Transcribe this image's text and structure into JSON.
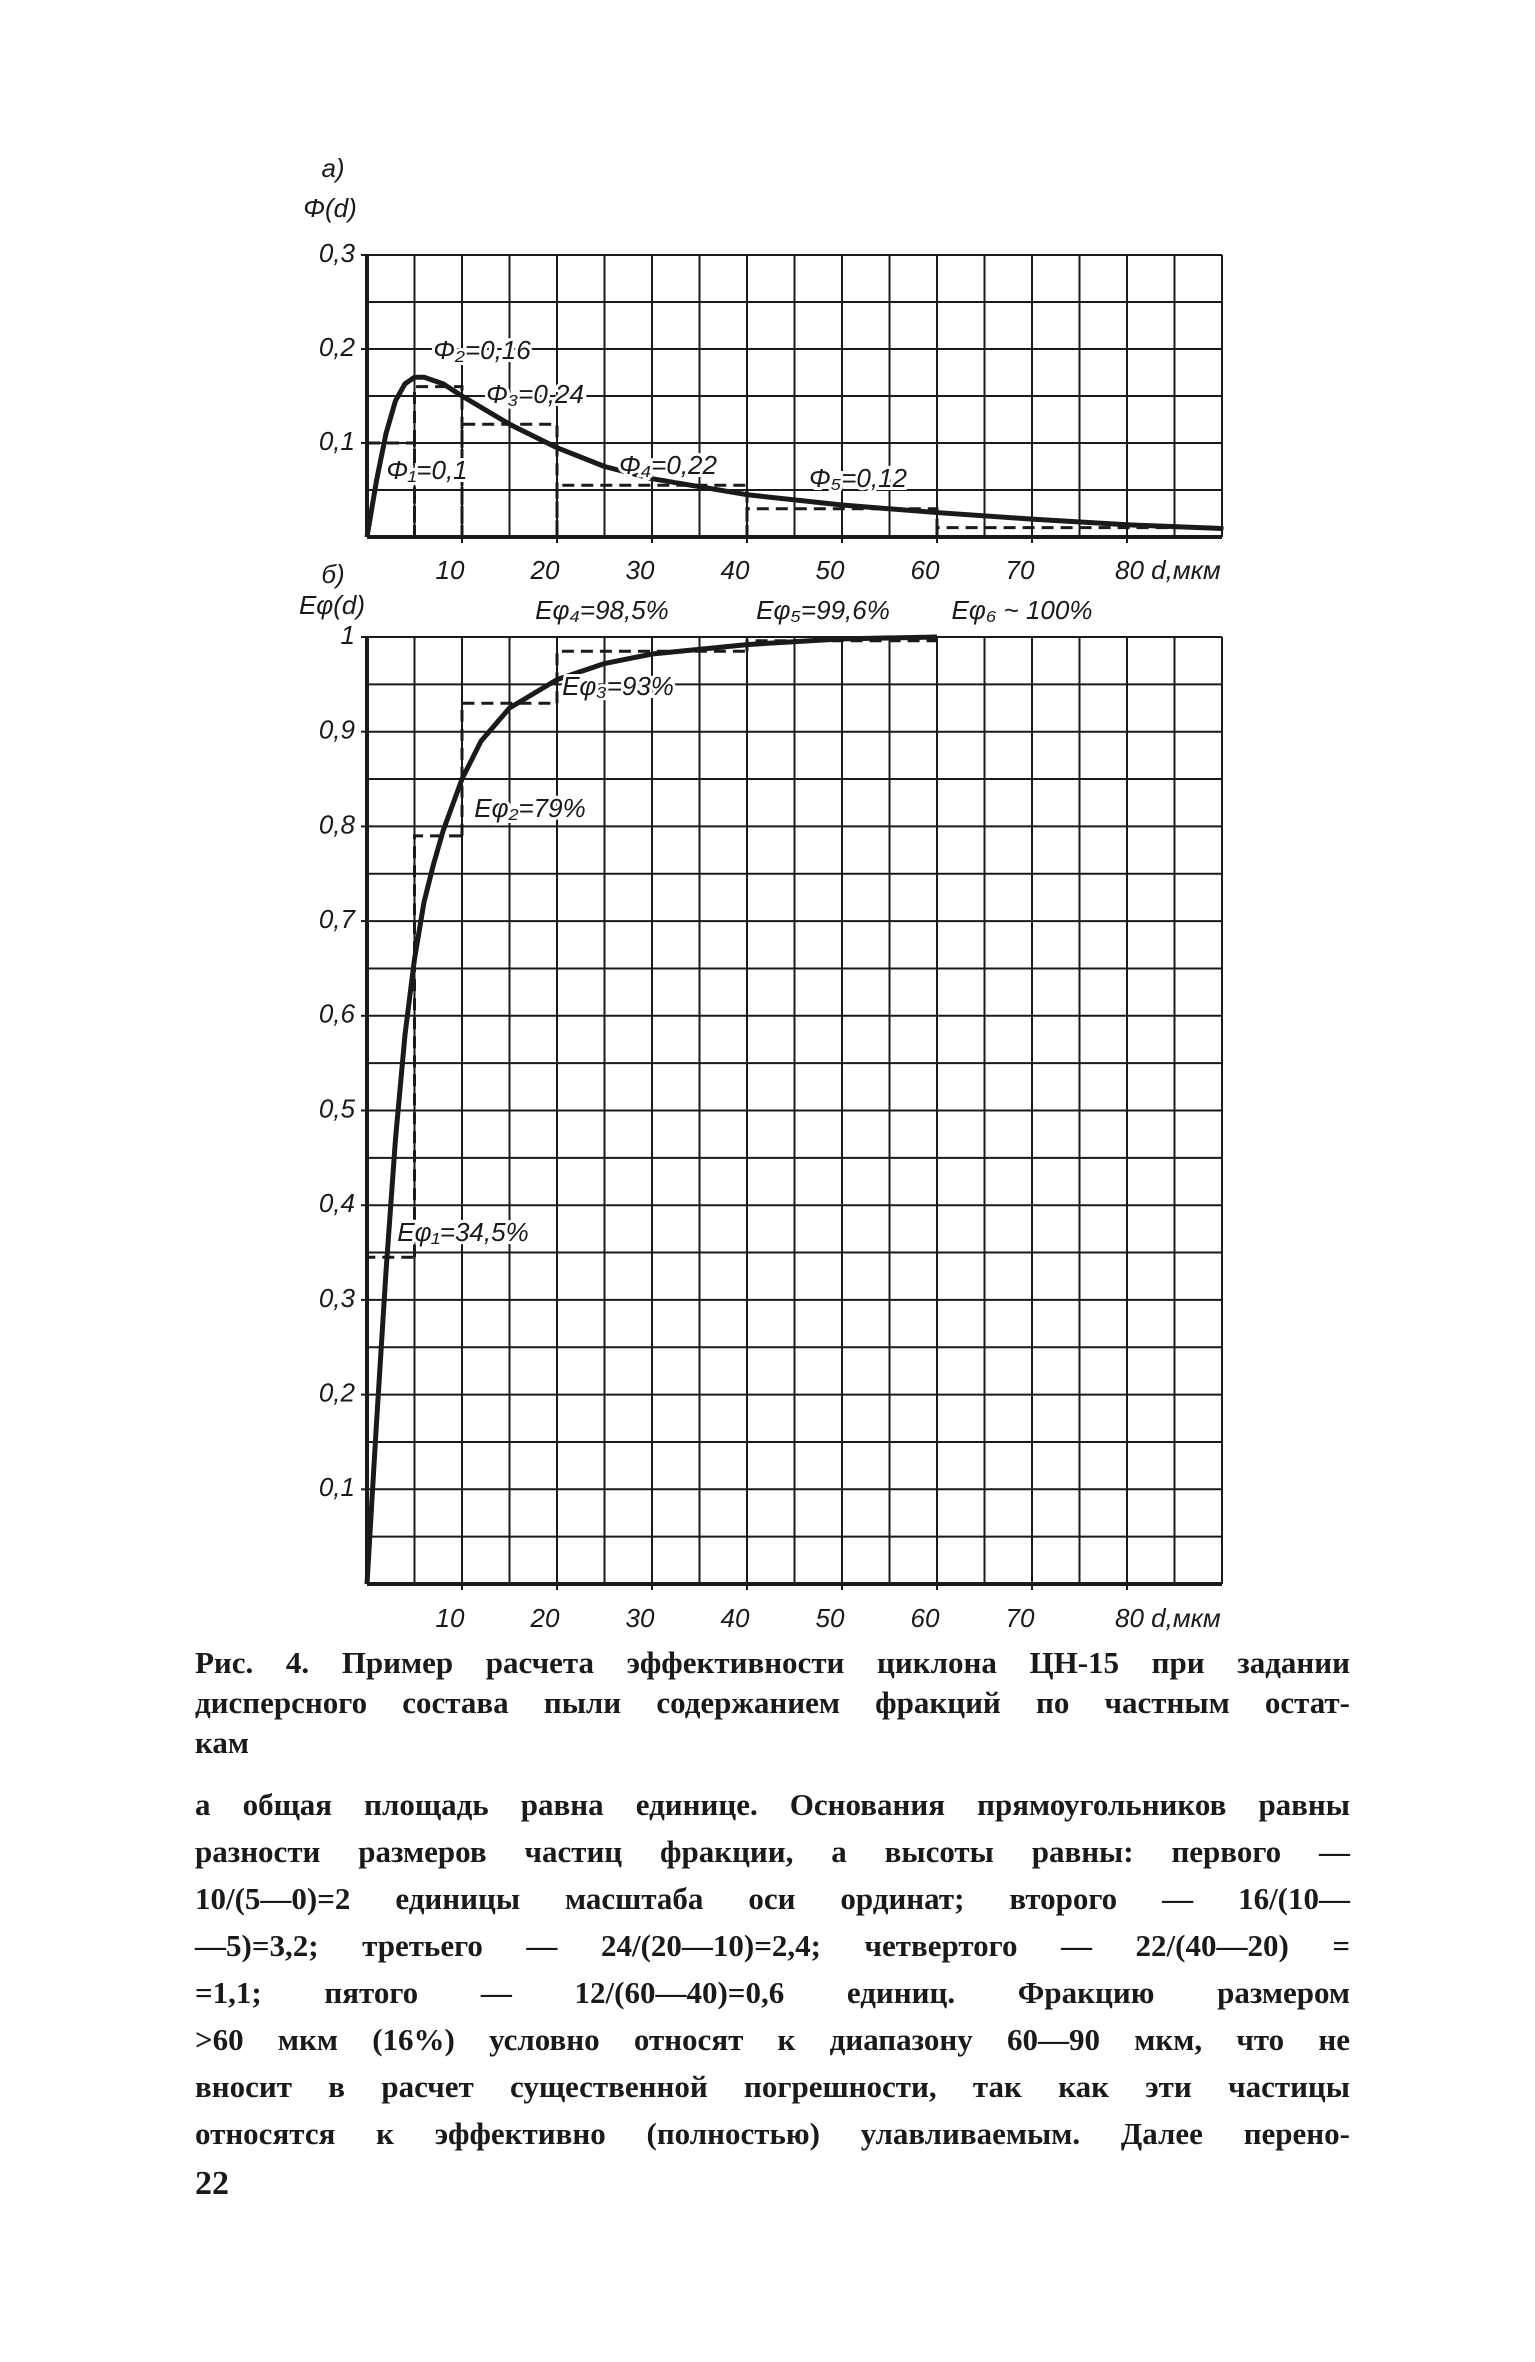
{
  "chart_data": [
    {
      "type": "line",
      "label": "а)",
      "ylabel": "Φ(d)",
      "color": "#1a1a1a",
      "xlim": [
        0,
        90
      ],
      "ylim": [
        0,
        0.3
      ],
      "xticks": [
        10,
        20,
        30,
        40,
        50,
        60,
        70,
        {
          "value": 80,
          "label": "80 d,мкм"
        }
      ],
      "yticks": [
        {
          "value": 0.1,
          "label": "0,1"
        },
        {
          "value": 0.2,
          "label": "0,2"
        },
        {
          "value": 0.3,
          "label": "0,3"
        }
      ],
      "xgrid": [
        0,
        5,
        10,
        15,
        20,
        25,
        30,
        35,
        40,
        45,
        50,
        55,
        60,
        65,
        70,
        75,
        80,
        85,
        90
      ],
      "ygrid": [
        0,
        0.05,
        0.1,
        0.15,
        0.2,
        0.25,
        0.3
      ],
      "x": [
        0,
        1,
        2,
        3,
        4,
        5,
        6,
        8,
        10,
        15,
        20,
        25,
        30,
        40,
        50,
        60,
        70,
        80,
        90
      ],
      "values": [
        0,
        0.06,
        0.11,
        0.145,
        0.163,
        0.17,
        0.17,
        0.163,
        0.15,
        0.12,
        0.095,
        0.075,
        0.062,
        0.045,
        0.034,
        0.026,
        0.019,
        0.013,
        0.009
      ],
      "histogram": {
        "bins": [
          0,
          5,
          10,
          20,
          40,
          60,
          90
        ],
        "values": [
          0.1,
          0.16,
          0.12,
          0.055,
          0.03,
          0.01
        ]
      },
      "annotations": [
        "Φ₁=0,1",
        "Φ₂=0,16",
        "Φ₃=0,24",
        "Φ₄=0,22",
        "Φ₅=0,12"
      ]
    },
    {
      "type": "line",
      "label": "б)",
      "ylabel": "Eφ(d)",
      "color": "#1a1a1a",
      "xlim": [
        0,
        90
      ],
      "ylim": [
        0,
        1
      ],
      "xticks": [
        10,
        20,
        30,
        40,
        50,
        60,
        70,
        {
          "value": 80,
          "label": "80 d,мкм"
        }
      ],
      "yticks": [
        {
          "value": 0.1,
          "label": "0,1"
        },
        {
          "value": 0.2,
          "label": "0,2"
        },
        {
          "value": 0.3,
          "label": "0,3"
        },
        {
          "value": 0.4,
          "label": "0,4"
        },
        {
          "value": 0.5,
          "label": "0,5"
        },
        {
          "value": 0.6,
          "label": "0,6"
        },
        {
          "value": 0.7,
          "label": "0,7"
        },
        {
          "value": 0.8,
          "label": "0,8"
        },
        {
          "value": 0.9,
          "label": "0,9"
        },
        1
      ],
      "xgrid": [
        0,
        5,
        10,
        15,
        20,
        25,
        30,
        35,
        40,
        45,
        50,
        55,
        60,
        65,
        70,
        75,
        80,
        85,
        90
      ],
      "ygrid": [
        0,
        0.05,
        0.1,
        0.15,
        0.2,
        0.25,
        0.3,
        0.35,
        0.4,
        0.45,
        0.5,
        0.55,
        0.6,
        0.65,
        0.7,
        0.75,
        0.8,
        0.85,
        0.9,
        0.95,
        1
      ],
      "x": [
        0,
        1,
        2,
        3,
        4,
        5,
        6,
        7,
        8,
        10,
        12,
        15,
        20,
        25,
        30,
        40,
        50,
        60
      ],
      "values": [
        0,
        0.17,
        0.33,
        0.47,
        0.58,
        0.66,
        0.72,
        0.76,
        0.795,
        0.85,
        0.89,
        0.925,
        0.955,
        0.972,
        0.982,
        0.992,
        0.998,
        1
      ],
      "steps": {
        "bins": [
          0,
          5,
          10,
          20,
          40,
          60
        ],
        "values": [
          0.345,
          0.79,
          0.93,
          0.985,
          0.996
        ]
      },
      "annotations": [
        "Eφ₁=34,5%",
        "Eφ₂=79%",
        "Eφ₃=93%",
        "Eφ₄=98,5%",
        "Eφ₅=99,6%",
        "Eφ₆ ~ 100%"
      ]
    }
  ],
  "caption": [
    "Рис. 4. Пример расчета эффективности циклона ЦН-15 при задании",
    "дисперсного состава пыли содержанием фракций по частным остат-",
    "кам"
  ],
  "body": [
    "а общая площадь равна единице. Основания прямоугольников равны",
    "разности размеров частиц фракции, а высоты равны: первого —",
    "10/(5—0)=2 единицы масштаба оси ординат; второго — 16/(10—",
    "—5)=3,2; третьего — 24/(20—10)=2,4; четвертого — 22/(40—20) =",
    "=1,1; пятого — 12/(60—40)=0,6 единиц. Фракцию размером",
    "&gt;60 мкм (16%) условно относят к диапазону 60—90 мкм, что не",
    "вносит в расчет существенной погрешности, так как эти частицы",
    "относятся к эффективно (полностью) улавливаемым. Далее перено-"
  ],
  "page_number": "22"
}
